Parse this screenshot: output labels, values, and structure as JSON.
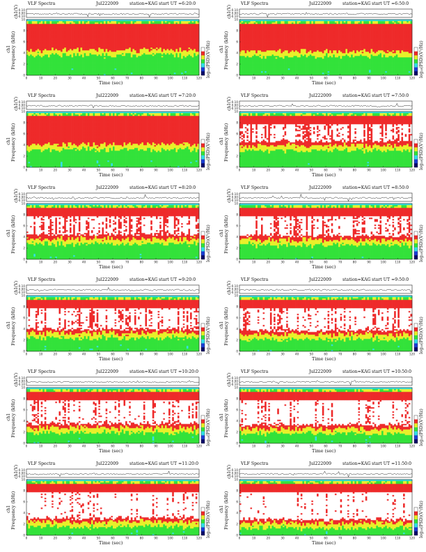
{
  "figure": {
    "title_word": "VLF Spectra",
    "station_label": "station=KAG",
    "start_prefix": "start  UT  =",
    "x_axis_label": "Time (sec)",
    "spec_ylabel_channel": "ch1",
    "spec_ylabel_text": "Frequency (kHz)",
    "ts_ylabel": "ch1(V)",
    "colorbar_label": "log₁₀(PSD)(V²/Hz)",
    "spec_ylim": [
      0,
      10
    ],
    "spec_yticks": [
      "0",
      "2",
      "4",
      "6",
      "8",
      "10"
    ],
    "ts_yticks": [
      "0.10",
      "0.00",
      "-0.10"
    ],
    "x_ticks": [
      "0",
      "10",
      "20",
      "30",
      "40",
      "50",
      "60",
      "70",
      "80",
      "90",
      "100",
      "110",
      "120"
    ],
    "colors": {
      "cyan": "#33e0e8",
      "green": "#33e23a",
      "yellow": "#e8f02a",
      "red": "#ee2a2a",
      "white": "#ffffff",
      "blue": "#1a3fd6",
      "navy": "#0a0a6a"
    }
  },
  "chart_data": [
    {
      "type": "heatmap",
      "date": "Jul222009",
      "start_ut": "6:20:0",
      "xlim": [
        0,
        120
      ],
      "ylim": [
        0,
        10
      ],
      "xlabel": "Time (sec)",
      "ylabel": "Frequency (kHz)"
    },
    {
      "type": "heatmap",
      "date": "Jul222009",
      "start_ut": "6:50:0",
      "xlim": [
        0,
        120
      ],
      "ylim": [
        0,
        10
      ],
      "xlabel": "Time (sec)",
      "ylabel": "Frequency (kHz)"
    },
    {
      "type": "heatmap",
      "date": "Jul222009",
      "start_ut": "7:20:0",
      "xlim": [
        0,
        120
      ],
      "ylim": [
        0,
        10
      ],
      "xlabel": "Time (sec)",
      "ylabel": "Frequency (kHz)"
    },
    {
      "type": "heatmap",
      "date": "Jul222009",
      "start_ut": "7:50:0",
      "xlim": [
        0,
        120
      ],
      "ylim": [
        0,
        10
      ],
      "xlabel": "Time (sec)",
      "ylabel": "Frequency (kHz)"
    },
    {
      "type": "heatmap",
      "date": "Jul222009",
      "start_ut": "8:20:0",
      "xlim": [
        0,
        120
      ],
      "ylim": [
        0,
        10
      ],
      "xlabel": "Time (sec)",
      "ylabel": "Frequency (kHz)"
    },
    {
      "type": "heatmap",
      "date": "Jul222009",
      "start_ut": "8:50:0",
      "xlim": [
        0,
        120
      ],
      "ylim": [
        0,
        10
      ],
      "xlabel": "Time (sec)",
      "ylabel": "Frequency (kHz)"
    },
    {
      "type": "heatmap",
      "date": "Jul222009",
      "start_ut": "9:20:0",
      "xlim": [
        0,
        120
      ],
      "ylim": [
        0,
        10
      ],
      "xlabel": "Time (sec)",
      "ylabel": "Frequency (kHz)"
    },
    {
      "type": "heatmap",
      "date": "Jul222009",
      "start_ut": "9:50:0",
      "xlim": [
        0,
        120
      ],
      "ylim": [
        0,
        10
      ],
      "xlabel": "Time (sec)",
      "ylabel": "Frequency (kHz)"
    },
    {
      "type": "heatmap",
      "date": "Jul222009",
      "start_ut": "10:20:0",
      "xlim": [
        0,
        120
      ],
      "ylim": [
        0,
        10
      ],
      "xlabel": "Time (sec)",
      "ylabel": "Frequency (kHz)"
    },
    {
      "type": "heatmap",
      "date": "Jul222009",
      "start_ut": "10:50:0",
      "xlim": [
        0,
        120
      ],
      "ylim": [
        0,
        10
      ],
      "xlabel": "Time (sec)",
      "ylabel": "Frequency (kHz)"
    },
    {
      "type": "heatmap",
      "date": "Jul222009",
      "start_ut": "11:20:0",
      "xlim": [
        0,
        120
      ],
      "ylim": [
        0,
        10
      ],
      "xlabel": "Time (sec)",
      "ylabel": "Frequency (kHz)"
    },
    {
      "type": "heatmap",
      "date": "Jul222009",
      "start_ut": "11:50:0",
      "xlim": [
        0,
        120
      ],
      "ylim": [
        0,
        10
      ],
      "xlabel": "Time (sec)",
      "ylabel": "Frequency (kHz)"
    }
  ]
}
